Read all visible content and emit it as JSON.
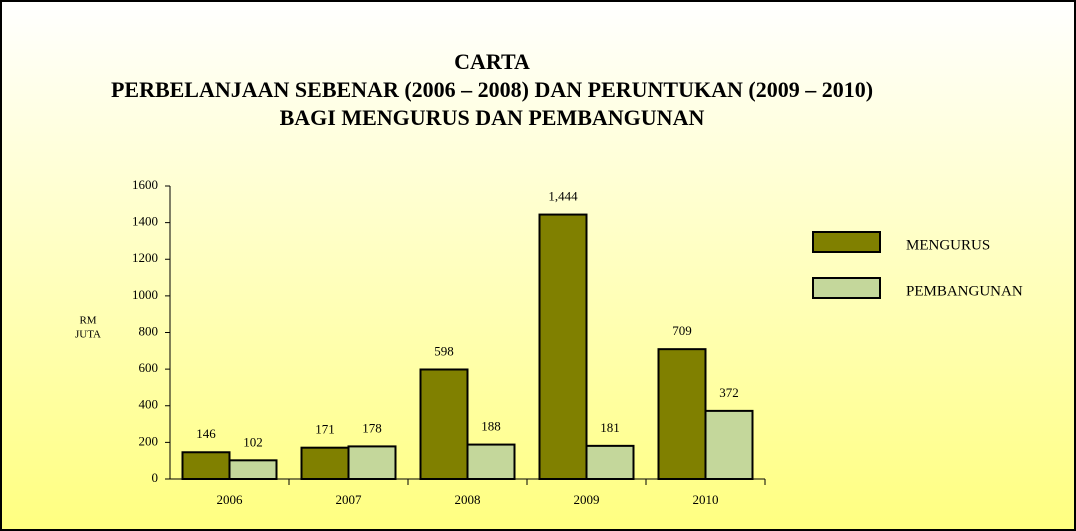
{
  "chart_data": {
    "type": "bar",
    "title": [
      "CARTA",
      "PERBELANJAAN SEBENAR (2006 – 2008) DAN PERUNTUKAN (2009 – 2010)",
      "BAGI MENGURUS DAN PEMBANGUNAN"
    ],
    "y_label": [
      "RM",
      "JUTA"
    ],
    "categories": [
      "2006",
      "2007",
      "2008",
      "2009",
      "2010"
    ],
    "series": [
      {
        "name": "MENGURUS",
        "color": "#808000",
        "values": [
          146,
          171,
          598,
          1444,
          709
        ],
        "value_labels": [
          "146",
          "171",
          "598",
          "1,444",
          "709"
        ]
      },
      {
        "name": "PEMBANGUNAN",
        "color": "#c4d79b",
        "values": [
          102,
          178,
          188,
          181,
          372
        ]
      }
    ],
    "ylim": [
      0,
      1600
    ],
    "yticks": [
      0,
      200,
      400,
      600,
      800,
      1000,
      1200,
      1400,
      1600
    ],
    "legend": "right"
  }
}
